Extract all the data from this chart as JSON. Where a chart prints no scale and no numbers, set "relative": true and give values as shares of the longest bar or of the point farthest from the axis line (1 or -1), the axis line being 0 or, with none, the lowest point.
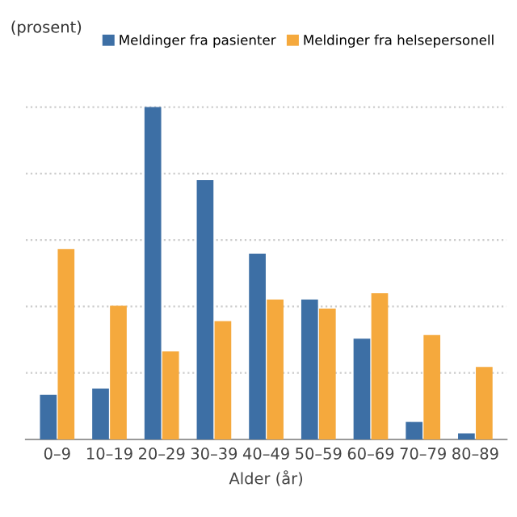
{
  "chart_data": {
    "type": "bar",
    "ylabel": "(prosent)",
    "xlabel": "Alder (år)",
    "relative": true,
    "grid": "y",
    "legend": "top right",
    "categories": [
      "0–9",
      "10–19",
      "20–29",
      "30–39",
      "40–49",
      "50–59",
      "60–69",
      "70–79",
      "80–89"
    ],
    "series": [
      {
        "name": "Meldinger fra pasienter",
        "color": "#3d6fa5",
        "values": [
          0.134,
          0.153,
          1,
          0.78,
          0.559,
          0.421,
          0.303,
          0.053,
          0.018
        ]
      },
      {
        "name": "Meldinger fra helsepersonell",
        "color": "#f5a93d",
        "values": [
          0.573,
          0.402,
          0.265,
          0.356,
          0.421,
          0.394,
          0.44,
          0.314,
          0.218
        ]
      }
    ]
  }
}
